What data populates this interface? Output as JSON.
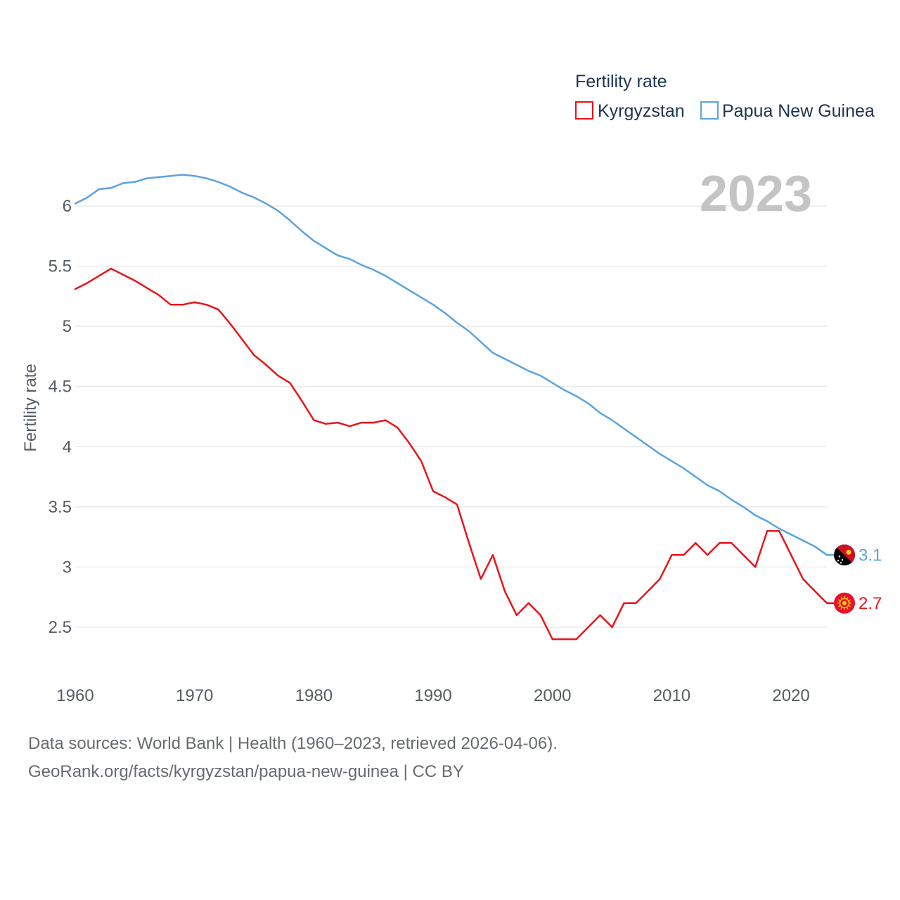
{
  "chart_data": {
    "type": "line",
    "title": "Fertility rate",
    "xlabel": "",
    "ylabel": "Fertility rate",
    "xlim": [
      1960,
      2023
    ],
    "ylim": [
      2.0,
      6.3
    ],
    "yticks": [
      2.5,
      3,
      3.5,
      4,
      4.5,
      5,
      5.5,
      6
    ],
    "ytick_labels": [
      "2.5",
      "3",
      "3.5",
      "4",
      "4.5",
      "5",
      "5.5",
      "6"
    ],
    "xticks": [
      1960,
      1970,
      1980,
      1990,
      2000,
      2010,
      2020
    ],
    "xtick_labels": [
      "1960",
      "1970",
      "1980",
      "1990",
      "2000",
      "2010",
      "2020"
    ],
    "grid": true,
    "legend_position": "top-right",
    "current_year_label": "2023",
    "x": [
      1960,
      1961,
      1962,
      1963,
      1964,
      1965,
      1966,
      1967,
      1968,
      1969,
      1970,
      1971,
      1972,
      1973,
      1974,
      1975,
      1976,
      1977,
      1978,
      1979,
      1980,
      1981,
      1982,
      1983,
      1984,
      1985,
      1986,
      1987,
      1988,
      1989,
      1990,
      1991,
      1992,
      1993,
      1994,
      1995,
      1996,
      1997,
      1998,
      1999,
      2000,
      2001,
      2002,
      2003,
      2004,
      2005,
      2006,
      2007,
      2008,
      2009,
      2010,
      2011,
      2012,
      2013,
      2014,
      2015,
      2016,
      2017,
      2018,
      2019,
      2020,
      2021,
      2022,
      2023
    ],
    "series": [
      {
        "name": "Kyrgyzstan",
        "color": "#e8141b",
        "end_label": "2.7",
        "flag_icon": "kyrgyzstan-flag-icon",
        "values": [
          5.31,
          5.36,
          5.42,
          5.48,
          5.43,
          5.38,
          5.32,
          5.26,
          5.18,
          5.18,
          5.2,
          5.18,
          5.14,
          5.02,
          4.89,
          4.76,
          4.68,
          4.59,
          4.53,
          4.38,
          4.22,
          4.19,
          4.2,
          4.17,
          4.2,
          4.2,
          4.22,
          4.16,
          4.03,
          3.88,
          3.63,
          3.58,
          3.52,
          3.2,
          2.9,
          3.1,
          2.8,
          2.6,
          2.7,
          2.6,
          2.4,
          2.4,
          2.4,
          2.5,
          2.6,
          2.5,
          2.7,
          2.7,
          2.8,
          2.9,
          3.1,
          3.1,
          3.2,
          3.1,
          3.2,
          3.2,
          3.1,
          3.0,
          3.3,
          3.3,
          3.1,
          2.9,
          2.8,
          2.7
        ]
      },
      {
        "name": "Papua New Guinea",
        "color": "#5ba3e0",
        "end_label": "3.1",
        "flag_icon": "papua-new-guinea-flag-icon",
        "values": [
          6.02,
          6.07,
          6.14,
          6.15,
          6.19,
          6.2,
          6.23,
          6.24,
          6.25,
          6.26,
          6.25,
          6.23,
          6.2,
          6.16,
          6.11,
          6.07,
          6.02,
          5.96,
          5.88,
          5.79,
          5.71,
          5.65,
          5.59,
          5.56,
          5.51,
          5.47,
          5.42,
          5.36,
          5.3,
          5.24,
          5.18,
          5.11,
          5.03,
          4.96,
          4.87,
          4.78,
          4.73,
          4.68,
          4.63,
          4.59,
          4.53,
          4.47,
          4.42,
          4.36,
          4.28,
          4.22,
          4.15,
          4.08,
          4.01,
          3.94,
          3.88,
          3.82,
          3.75,
          3.68,
          3.63,
          3.56,
          3.5,
          3.43,
          3.38,
          3.32,
          3.27,
          3.22,
          3.17,
          3.1
        ]
      }
    ]
  },
  "footer": {
    "sources": "Data sources: World Bank | Health (1960–2023, retrieved 2026-04-06).",
    "link": "GeoRank.org/facts/kyrgyzstan/papua-new-guinea | CC BY"
  }
}
